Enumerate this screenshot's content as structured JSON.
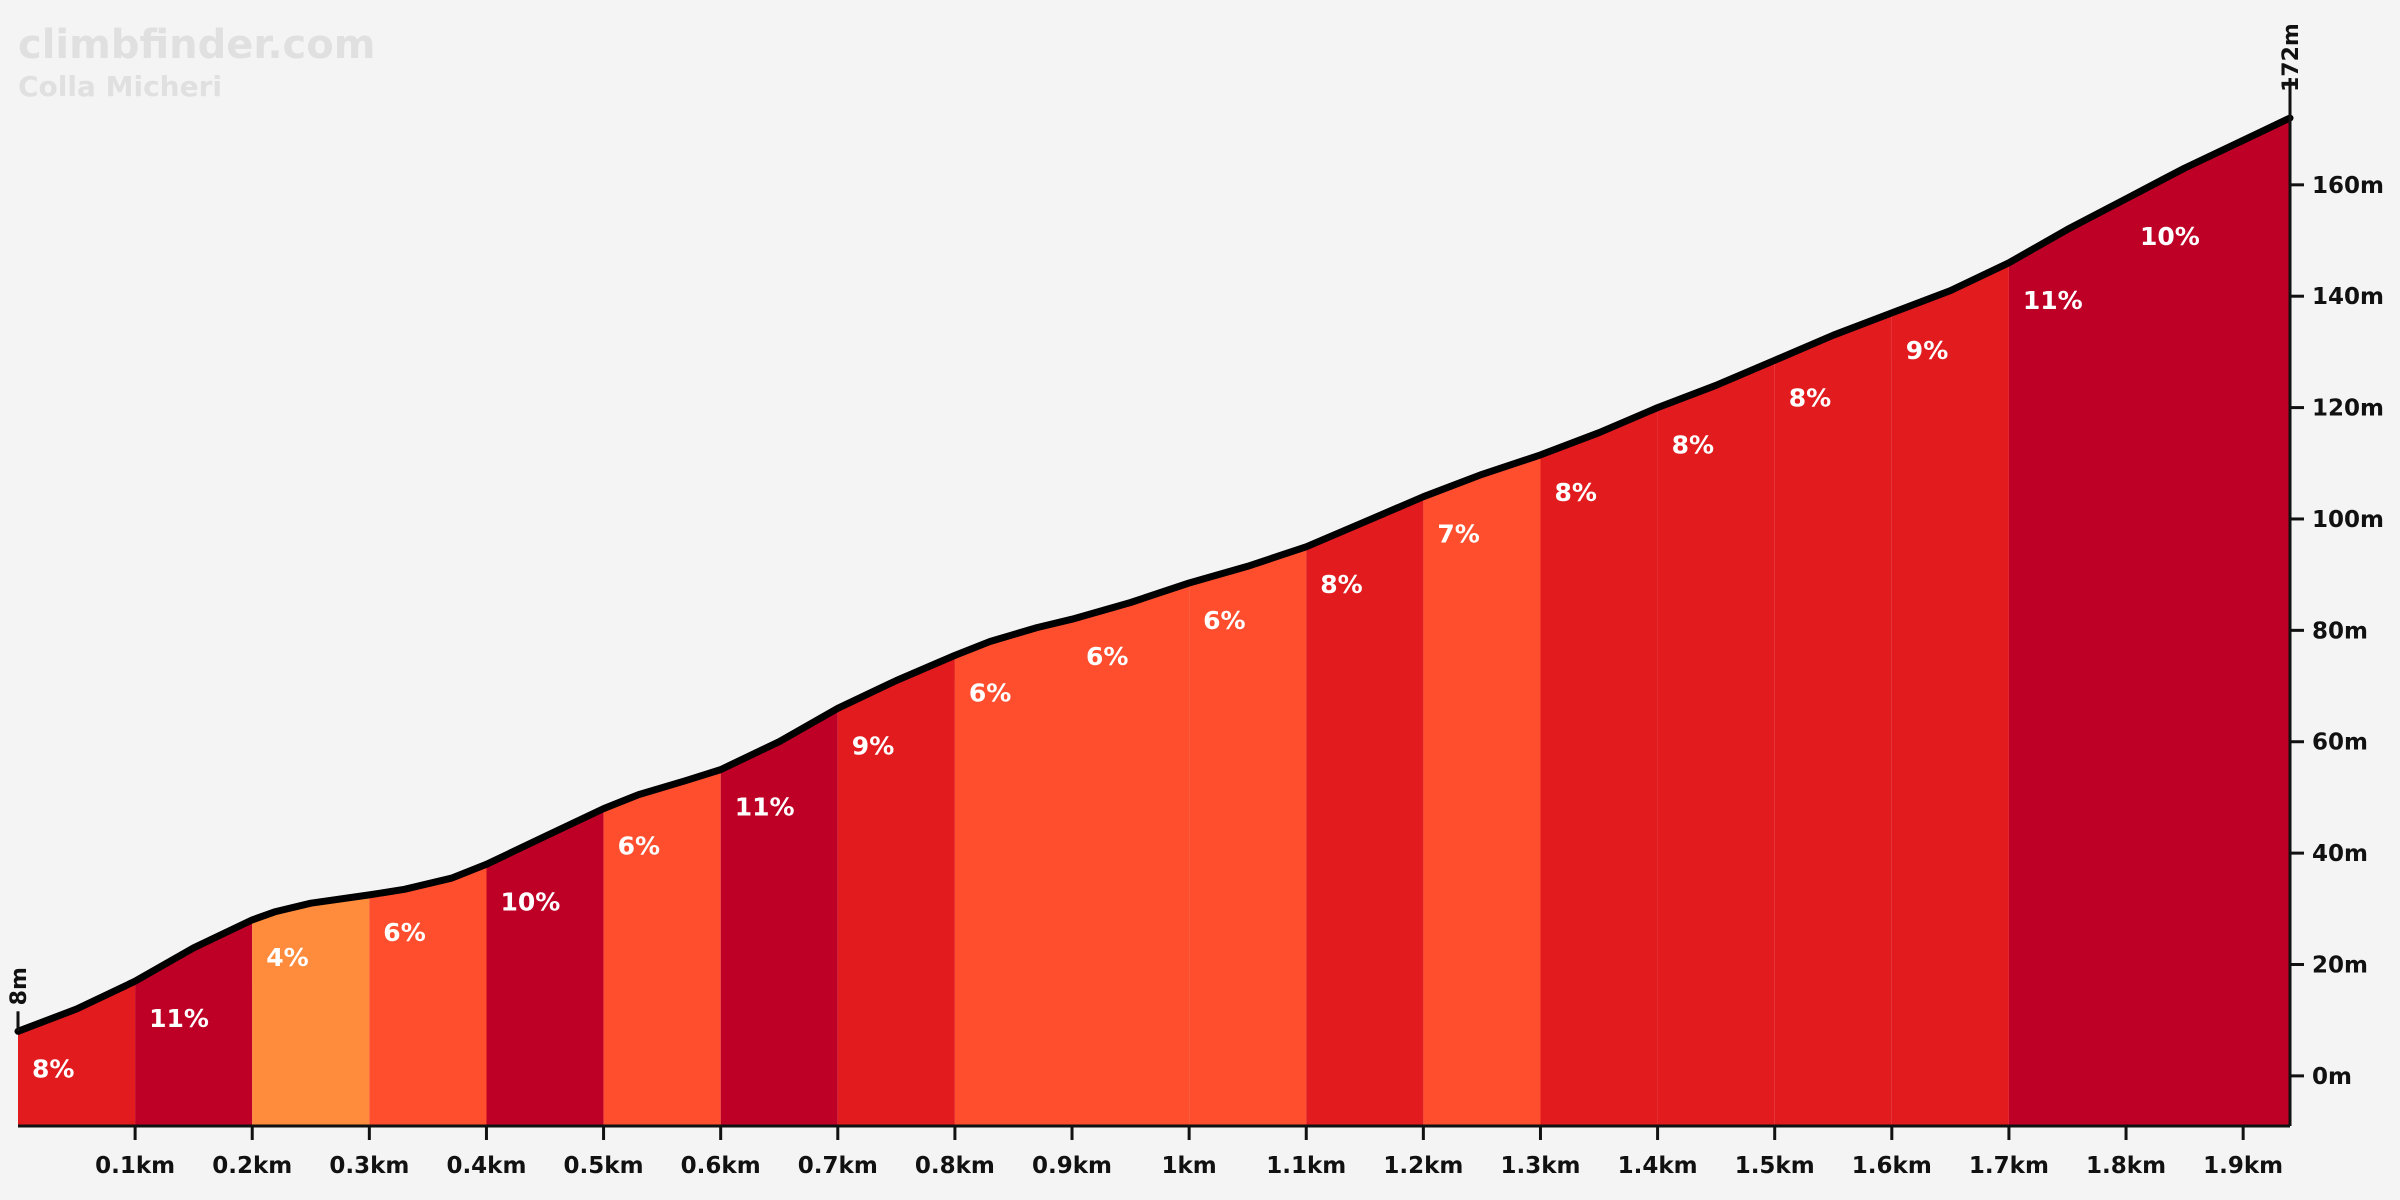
{
  "watermark": {
    "site": "climbfinder.com",
    "climb": "Colla Micheri"
  },
  "chart_data": {
    "type": "area",
    "xlim": [
      0,
      1.94
    ],
    "ylim": [
      -9,
      172
    ],
    "x_ticks": [
      {
        "v": 0.1,
        "label": "0.1km"
      },
      {
        "v": 0.2,
        "label": "0.2km"
      },
      {
        "v": 0.3,
        "label": "0.3km"
      },
      {
        "v": 0.4,
        "label": "0.4km"
      },
      {
        "v": 0.5,
        "label": "0.5km"
      },
      {
        "v": 0.6,
        "label": "0.6km"
      },
      {
        "v": 0.7,
        "label": "0.7km"
      },
      {
        "v": 0.8,
        "label": "0.8km"
      },
      {
        "v": 0.9,
        "label": "0.9km"
      },
      {
        "v": 1.0,
        "label": "1km"
      },
      {
        "v": 1.1,
        "label": "1.1km"
      },
      {
        "v": 1.2,
        "label": "1.2km"
      },
      {
        "v": 1.3,
        "label": "1.3km"
      },
      {
        "v": 1.4,
        "label": "1.4km"
      },
      {
        "v": 1.5,
        "label": "1.5km"
      },
      {
        "v": 1.6,
        "label": "1.6km"
      },
      {
        "v": 1.7,
        "label": "1.7km"
      },
      {
        "v": 1.8,
        "label": "1.8km"
      },
      {
        "v": 1.9,
        "label": "1.9km"
      }
    ],
    "y_ticks": [
      {
        "v": 0,
        "label": "0m"
      },
      {
        "v": 20,
        "label": "20m"
      },
      {
        "v": 40,
        "label": "40m"
      },
      {
        "v": 60,
        "label": "60m"
      },
      {
        "v": 80,
        "label": "80m"
      },
      {
        "v": 100,
        "label": "100m"
      },
      {
        "v": 120,
        "label": "120m"
      },
      {
        "v": 140,
        "label": "140m"
      },
      {
        "v": 160,
        "label": "160m"
      }
    ],
    "start_label": "8m",
    "end_label": "172m",
    "profile": [
      [
        0,
        8
      ],
      [
        0.05,
        12
      ],
      [
        0.1,
        17
      ],
      [
        0.15,
        23
      ],
      [
        0.2,
        28
      ],
      [
        0.22,
        29.5
      ],
      [
        0.25,
        31
      ],
      [
        0.3,
        32.5
      ],
      [
        0.33,
        33.5
      ],
      [
        0.37,
        35.5
      ],
      [
        0.4,
        38
      ],
      [
        0.45,
        43
      ],
      [
        0.5,
        48
      ],
      [
        0.53,
        50.5
      ],
      [
        0.57,
        53
      ],
      [
        0.6,
        55
      ],
      [
        0.65,
        60
      ],
      [
        0.7,
        66
      ],
      [
        0.75,
        71
      ],
      [
        0.8,
        75.5
      ],
      [
        0.83,
        78
      ],
      [
        0.87,
        80.5
      ],
      [
        0.9,
        82
      ],
      [
        0.95,
        85
      ],
      [
        1.0,
        88.5
      ],
      [
        1.05,
        91.5
      ],
      [
        1.1,
        95
      ],
      [
        1.15,
        99.5
      ],
      [
        1.2,
        104
      ],
      [
        1.25,
        108
      ],
      [
        1.3,
        111.5
      ],
      [
        1.35,
        115.5
      ],
      [
        1.4,
        120
      ],
      [
        1.45,
        124
      ],
      [
        1.5,
        128.5
      ],
      [
        1.55,
        133
      ],
      [
        1.6,
        137
      ],
      [
        1.65,
        141
      ],
      [
        1.7,
        146
      ],
      [
        1.75,
        152
      ],
      [
        1.8,
        157.5
      ],
      [
        1.85,
        163
      ],
      [
        1.9,
        168
      ],
      [
        1.94,
        172
      ]
    ],
    "segments": [
      {
        "x0": 0.0,
        "x1": 0.1,
        "grade": "8%",
        "color": "#e21b1e"
      },
      {
        "x0": 0.1,
        "x1": 0.2,
        "grade": "11%",
        "color": "#bf0026"
      },
      {
        "x0": 0.2,
        "x1": 0.3,
        "grade": "4%",
        "color": "#ff8c3c"
      },
      {
        "x0": 0.3,
        "x1": 0.4,
        "grade": "6%",
        "color": "#ff4e2e"
      },
      {
        "x0": 0.4,
        "x1": 0.5,
        "grade": "10%",
        "color": "#bf0026"
      },
      {
        "x0": 0.5,
        "x1": 0.6,
        "grade": "6%",
        "color": "#ff4e2e"
      },
      {
        "x0": 0.6,
        "x1": 0.7,
        "grade": "11%",
        "color": "#bf0026"
      },
      {
        "x0": 0.7,
        "x1": 0.8,
        "grade": "9%",
        "color": "#e21b1e"
      },
      {
        "x0": 0.8,
        "x1": 0.9,
        "grade": "6%",
        "color": "#ff4e2e"
      },
      {
        "x0": 0.9,
        "x1": 1.0,
        "grade": "6%",
        "color": "#ff4e2e"
      },
      {
        "x0": 1.0,
        "x1": 1.1,
        "grade": "6%",
        "color": "#ff4e2e"
      },
      {
        "x0": 1.1,
        "x1": 1.2,
        "grade": "8%",
        "color": "#e21b1e"
      },
      {
        "x0": 1.2,
        "x1": 1.3,
        "grade": "7%",
        "color": "#ff4e2e"
      },
      {
        "x0": 1.3,
        "x1": 1.4,
        "grade": "8%",
        "color": "#e21b1e"
      },
      {
        "x0": 1.4,
        "x1": 1.5,
        "grade": "8%",
        "color": "#e21b1e"
      },
      {
        "x0": 1.5,
        "x1": 1.6,
        "grade": "8%",
        "color": "#e21b1e"
      },
      {
        "x0": 1.6,
        "x1": 1.7,
        "grade": "9%",
        "color": "#e21b1e"
      },
      {
        "x0": 1.7,
        "x1": 1.8,
        "grade": "11%",
        "color": "#bf0026"
      },
      {
        "x0": 1.8,
        "x1": 1.94,
        "grade": "10%",
        "color": "#bf0026"
      }
    ]
  }
}
